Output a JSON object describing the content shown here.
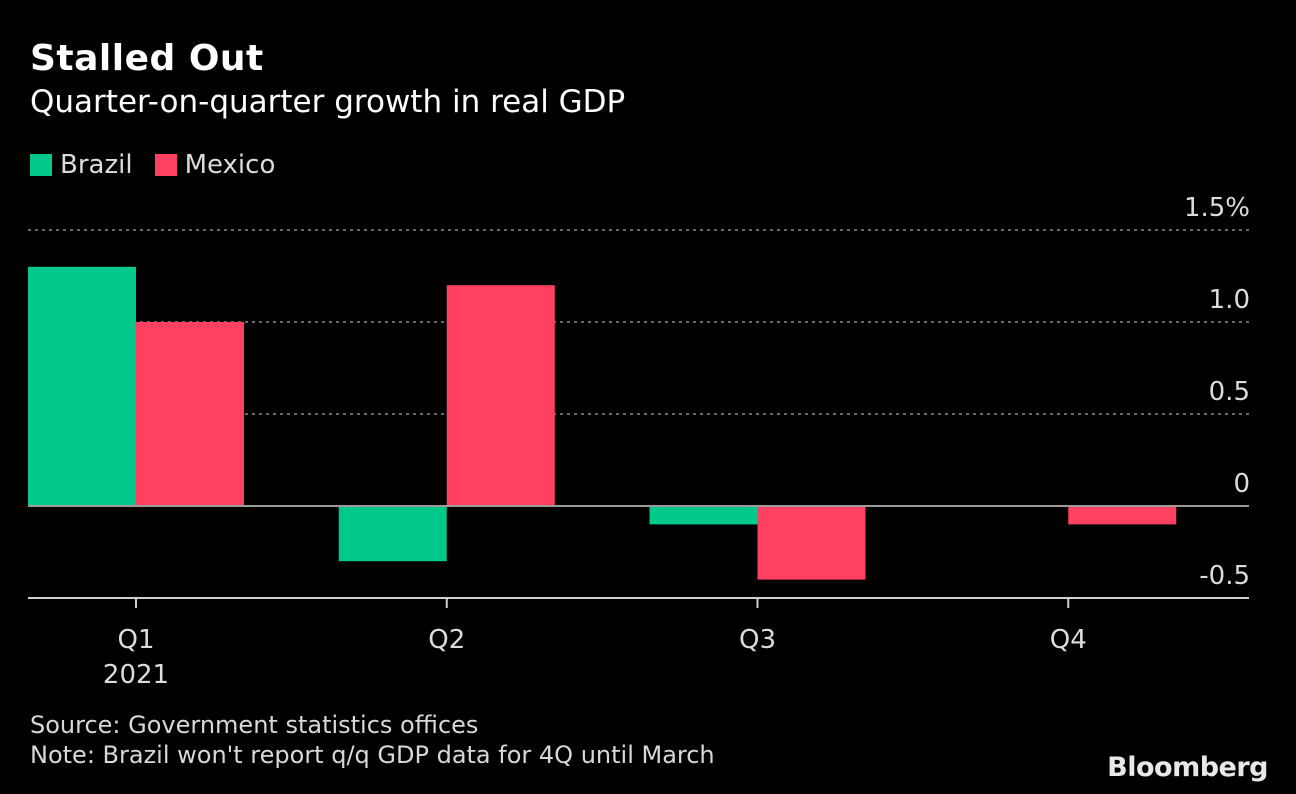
{
  "header": {
    "title": "Stalled Out",
    "subtitle": "Quarter-on-quarter growth in real GDP"
  },
  "footer": {
    "source": "Source: Government statistics offices",
    "note": "Note: Brazil won't report q/q GDP data for 4Q until March",
    "logo": "Bloomberg"
  },
  "chart_data": {
    "type": "bar",
    "categories": [
      "Q1",
      "Q2",
      "Q3",
      "Q4"
    ],
    "category_sublabels": [
      "2021",
      "",
      "",
      ""
    ],
    "series": [
      {
        "name": "Brazil",
        "color": "#00c98b",
        "values": [
          1.3,
          -0.3,
          -0.1,
          null
        ]
      },
      {
        "name": "Mexico",
        "color": "#ff4060",
        "values": [
          1.0,
          1.2,
          -0.4,
          -0.1
        ]
      }
    ],
    "ylim": [
      -0.5,
      1.5
    ],
    "yticks": [
      {
        "value": 1.5,
        "label": "1.5%"
      },
      {
        "value": 1.0,
        "label": "1.0"
      },
      {
        "value": 0.5,
        "label": "0.5"
      },
      {
        "value": 0,
        "label": "0"
      },
      {
        "value": -0.5,
        "label": "-0.5"
      }
    ],
    "grid": true,
    "legend_position": "top-left",
    "y_axis_side": "right"
  }
}
